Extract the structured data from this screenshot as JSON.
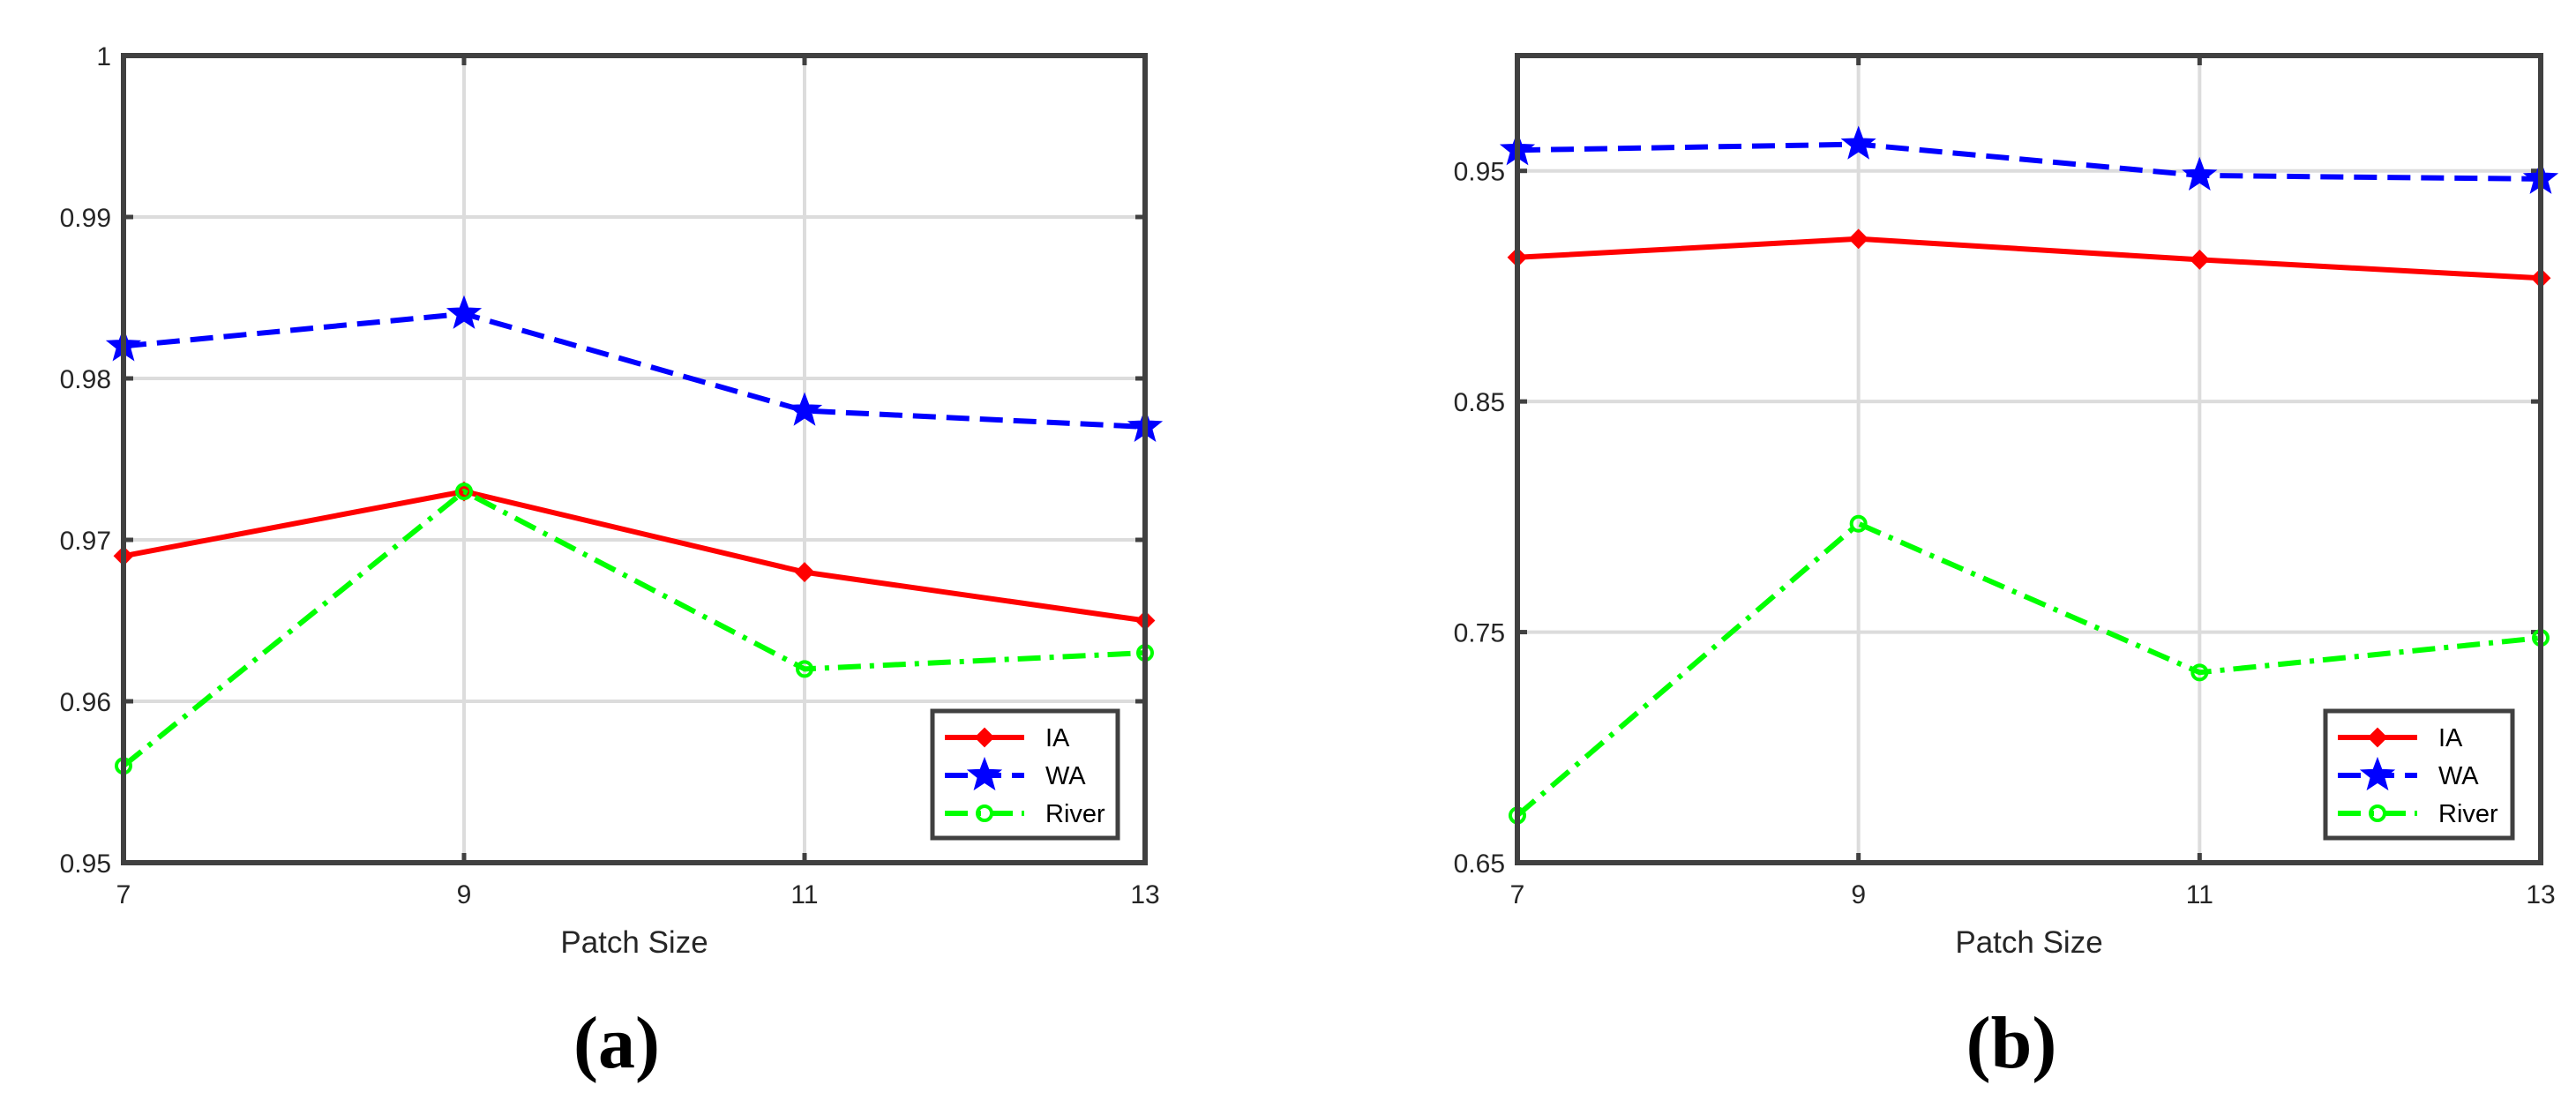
{
  "chart_data": [
    {
      "type": "line",
      "panel_label": "(a)",
      "xlabel": "Patch Size",
      "ylabel": "",
      "x": [
        7,
        9,
        11,
        13
      ],
      "x_ticks": [
        "7",
        "9",
        "11",
        "13"
      ],
      "ylim": [
        0.95,
        1.0
      ],
      "y_ticks": [
        0.95,
        0.96,
        0.97,
        0.98,
        0.99,
        1.0
      ],
      "y_tick_labels": [
        "0.95",
        "0.96",
        "0.97",
        "0.98",
        "0.99",
        "1"
      ],
      "grid": true,
      "legend_position": "bottom-right",
      "series": [
        {
          "name": "IA",
          "color": "#ff0000",
          "line_style": "solid",
          "marker": "diamond",
          "values": [
            0.969,
            0.973,
            0.968,
            0.965
          ]
        },
        {
          "name": "WA",
          "color": "#0000ff",
          "line_style": "dashed",
          "marker": "star",
          "values": [
            0.982,
            0.984,
            0.978,
            0.977
          ]
        },
        {
          "name": "River",
          "color": "#00ff00",
          "line_style": "dash-dot",
          "marker": "circle",
          "values": [
            0.956,
            0.973,
            0.962,
            0.963
          ]
        }
      ]
    },
    {
      "type": "line",
      "panel_label": "(b)",
      "xlabel": "Patch Size",
      "ylabel": "",
      "x": [
        7,
        9,
        11,
        13
      ],
      "x_ticks": [
        "7",
        "9",
        "11",
        "13"
      ],
      "ylim": [
        0.65,
        1.0
      ],
      "y_ticks": [
        0.65,
        0.75,
        0.85,
        0.95
      ],
      "y_tick_labels": [
        "0.65",
        "0.75",
        "0.85",
        "0.95"
      ],
      "grid": true,
      "legend_position": "bottom-right",
      "series": [
        {
          "name": "IA",
          "color": "#ff0000",
          "line_style": "solid",
          "marker": "diamond",
          "values": [
            0.9125,
            0.9205,
            0.9115,
            0.9035
          ]
        },
        {
          "name": "WA",
          "color": "#0000ff",
          "line_style": "dashed",
          "marker": "star",
          "values": [
            0.959,
            0.9615,
            0.948,
            0.9465
          ]
        },
        {
          "name": "River",
          "color": "#00ff00",
          "line_style": "dash-dot",
          "marker": "circle",
          "values": [
            0.6705,
            0.797,
            0.7325,
            0.7475
          ]
        }
      ]
    }
  ]
}
